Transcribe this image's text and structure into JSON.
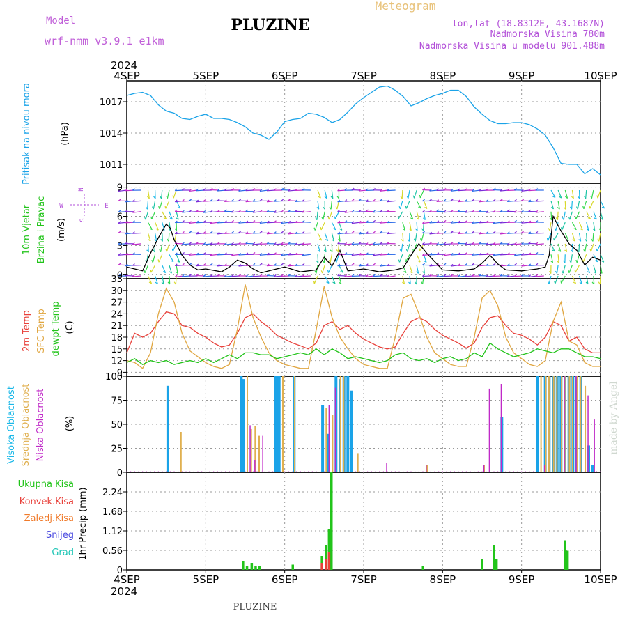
{
  "header": {
    "model_label": "Model",
    "model_name": "wrf-nmm_v3.9.1  e1km",
    "title": "PLUZINE",
    "meteogram": "Meteogram",
    "lonlat": "lon,lat (18.8312E, 43.1687N)",
    "elevation": "Nadmorska Visina 780m",
    "model_elevation": "Nadmorska Visina u modelu 901.488m",
    "footer": "PLUZINE",
    "watermark": "made by Angel",
    "colors": {
      "model": "#c05fd8",
      "title": "#000000",
      "meteogram": "#e8c27a",
      "info": "#b24fd8"
    }
  },
  "time_axis": {
    "year_top": "2024",
    "year_bottom": "2024",
    "dates": [
      "4SEP",
      "5SEP",
      "6SEP",
      "7SEP",
      "8SEP",
      "9SEP",
      "10SEP"
    ],
    "x_range_days": [
      0,
      6
    ]
  },
  "chart_data": [
    {
      "type": "line",
      "panel": "pressure",
      "ylabel_color": "Pritisak na nivou mora",
      "unit": "(hPa)",
      "yticks": [
        "1011",
        "1014",
        "1017"
      ],
      "ylim": [
        1009.2,
        1019.0
      ],
      "series": [
        {
          "color": "#1aa3e8",
          "x": [
            0,
            0.1,
            0.2,
            0.3,
            0.4,
            0.5,
            0.6,
            0.7,
            0.8,
            0.9,
            1.0,
            1.1,
            1.2,
            1.3,
            1.4,
            1.5,
            1.6,
            1.7,
            1.8,
            1.9,
            2.0,
            2.1,
            2.2,
            2.3,
            2.4,
            2.5,
            2.6,
            2.7,
            2.8,
            2.9,
            3.0,
            3.1,
            3.2,
            3.3,
            3.4,
            3.5,
            3.6,
            3.7,
            3.8,
            3.9,
            4.0,
            4.1,
            4.2,
            4.3,
            4.4,
            4.5,
            4.6,
            4.7,
            4.8,
            4.9,
            5.0,
            5.1,
            5.2,
            5.3,
            5.4,
            5.5,
            5.6,
            5.7,
            5.8,
            5.9,
            6.0
          ],
          "values": [
            1017.6,
            1017.8,
            1017.9,
            1017.6,
            1016.7,
            1016.1,
            1015.9,
            1015.4,
            1015.3,
            1015.6,
            1015.8,
            1015.4,
            1015.4,
            1015.3,
            1015.0,
            1014.6,
            1014.0,
            1013.8,
            1013.4,
            1014.1,
            1015.1,
            1015.3,
            1015.4,
            1015.9,
            1015.8,
            1015.5,
            1015.0,
            1015.3,
            1016.0,
            1016.8,
            1017.4,
            1017.9,
            1018.4,
            1018.5,
            1018.1,
            1017.5,
            1016.6,
            1016.9,
            1017.3,
            1017.6,
            1017.8,
            1018.1,
            1018.1,
            1017.5,
            1016.5,
            1015.8,
            1015.2,
            1014.9,
            1014.9,
            1015.0,
            1015.0,
            1014.8,
            1014.4,
            1013.8,
            1012.6,
            1011.1,
            1011.0,
            1011.0,
            1010.1,
            1010.6,
            1010.0
          ]
        }
      ]
    },
    {
      "type": "line",
      "panel": "wind",
      "ylabel_line1": "10m Vjetar",
      "ylabel_line2": "Brzina i Pravac",
      "unit": "(m/s)",
      "compass": {
        "n": "N",
        "s": "S",
        "e": "E",
        "w": "W"
      },
      "yticks": [
        "0",
        "3",
        "6",
        "9"
      ],
      "ylim": [
        -0.4,
        9.4
      ],
      "series": [
        {
          "name_key": "speed",
          "color": "#000000",
          "x": [
            0,
            0.2,
            0.3,
            0.4,
            0.5,
            0.55,
            0.6,
            0.7,
            0.8,
            0.9,
            1.0,
            1.2,
            1.3,
            1.4,
            1.5,
            1.6,
            1.7,
            1.8,
            2.0,
            2.2,
            2.4,
            2.5,
            2.6,
            2.7,
            2.8,
            3.0,
            3.2,
            3.4,
            3.5,
            3.6,
            3.7,
            3.8,
            4.0,
            4.2,
            4.4,
            4.5,
            4.6,
            4.7,
            4.8,
            5.0,
            5.2,
            5.3,
            5.35,
            5.4,
            5.5,
            5.6,
            5.7,
            5.8,
            5.9,
            6.0
          ],
          "values": [
            0.8,
            0.4,
            2.2,
            3.8,
            5.2,
            4.8,
            3.6,
            2.0,
            1.0,
            0.5,
            0.6,
            0.3,
            0.8,
            1.5,
            1.2,
            0.6,
            0.2,
            0.4,
            0.8,
            0.3,
            0.5,
            1.8,
            0.9,
            2.5,
            0.4,
            0.6,
            0.3,
            0.5,
            0.7,
            2.0,
            3.2,
            2.2,
            0.5,
            0.4,
            0.6,
            1.2,
            2.0,
            1.1,
            0.5,
            0.4,
            0.6,
            0.8,
            2.0,
            6.0,
            4.5,
            3.2,
            2.5,
            1.0,
            1.8,
            1.5
          ]
        }
      ]
    },
    {
      "type": "line",
      "panel": "temperature",
      "ylabel_t2": "2m Temp",
      "ylabel_sfc": "SFC Temp",
      "ylabel_dew": "dewpt Temp",
      "unit": "(C)",
      "yticks": [
        "9",
        "12",
        "15",
        "18",
        "21",
        "24",
        "27",
        "30",
        "33"
      ],
      "ylim": [
        8,
        33
      ],
      "series": [
        {
          "name_key": "t2",
          "color": "#e8403a",
          "x": [
            0,
            0.1,
            0.2,
            0.3,
            0.4,
            0.5,
            0.6,
            0.7,
            0.8,
            0.9,
            1.0,
            1.1,
            1.2,
            1.3,
            1.4,
            1.5,
            1.6,
            1.7,
            1.8,
            1.9,
            2.0,
            2.1,
            2.2,
            2.3,
            2.4,
            2.5,
            2.6,
            2.7,
            2.8,
            2.9,
            3.0,
            3.1,
            3.2,
            3.3,
            3.4,
            3.5,
            3.6,
            3.7,
            3.8,
            3.9,
            4.0,
            4.1,
            4.2,
            4.3,
            4.4,
            4.5,
            4.6,
            4.7,
            4.8,
            4.9,
            5.0,
            5.1,
            5.2,
            5.3,
            5.4,
            5.5,
            5.6,
            5.7,
            5.8,
            5.9,
            6.0
          ],
          "values": [
            14,
            19,
            18,
            19,
            22,
            24.5,
            24,
            21,
            20.5,
            19,
            18,
            16.5,
            15.5,
            16,
            19,
            23,
            24,
            22,
            20.5,
            18.5,
            17.5,
            16.5,
            15.8,
            15,
            16.5,
            21,
            22,
            20,
            21,
            19,
            17.5,
            16.5,
            15.5,
            15,
            15.5,
            19,
            22,
            23,
            22,
            20,
            18.5,
            17.5,
            16.5,
            15.2,
            16.5,
            20.5,
            23,
            23.5,
            21,
            19,
            18.5,
            17.5,
            16,
            18,
            22,
            21,
            17,
            18,
            15,
            14,
            14
          ]
        },
        {
          "name_key": "sfc",
          "color": "#e0a640",
          "x": [
            0,
            0.1,
            0.2,
            0.3,
            0.4,
            0.5,
            0.6,
            0.7,
            0.8,
            0.9,
            1.0,
            1.1,
            1.2,
            1.3,
            1.4,
            1.5,
            1.6,
            1.7,
            1.8,
            1.9,
            2.0,
            2.1,
            2.2,
            2.3,
            2.4,
            2.5,
            2.6,
            2.7,
            2.8,
            2.9,
            3.0,
            3.1,
            3.2,
            3.3,
            3.4,
            3.5,
            3.6,
            3.7,
            3.8,
            3.9,
            4.0,
            4.1,
            4.2,
            4.3,
            4.4,
            4.5,
            4.6,
            4.7,
            4.8,
            4.9,
            5.0,
            5.1,
            5.2,
            5.3,
            5.4,
            5.5,
            5.6,
            5.7,
            5.8,
            5.9,
            6.0
          ],
          "values": [
            12,
            11.5,
            10,
            14,
            24,
            30.5,
            27,
            19,
            14.5,
            13,
            11.5,
            10.5,
            10,
            11,
            20,
            31.5,
            23,
            18,
            14,
            12,
            11,
            10.5,
            10,
            10,
            20,
            31,
            23,
            18,
            15,
            12.5,
            11,
            10.5,
            10,
            10,
            18,
            28,
            29,
            24,
            18,
            14,
            12.5,
            11,
            10.5,
            10.5,
            18,
            28,
            30,
            26,
            18,
            14,
            12.5,
            11,
            10.5,
            12,
            22,
            27,
            17,
            16,
            11.5,
            10.5,
            10.5
          ]
        },
        {
          "name_key": "dew",
          "color": "#22c41a",
          "x": [
            0,
            0.1,
            0.2,
            0.3,
            0.4,
            0.5,
            0.6,
            0.7,
            0.8,
            0.9,
            1.0,
            1.1,
            1.2,
            1.3,
            1.4,
            1.5,
            1.6,
            1.7,
            1.8,
            1.9,
            2.0,
            2.1,
            2.2,
            2.3,
            2.4,
            2.5,
            2.6,
            2.7,
            2.8,
            2.9,
            3.0,
            3.1,
            3.2,
            3.3,
            3.4,
            3.5,
            3.6,
            3.7,
            3.8,
            3.9,
            4.0,
            4.1,
            4.2,
            4.3,
            4.4,
            4.5,
            4.6,
            4.7,
            4.8,
            4.9,
            5.0,
            5.1,
            5.2,
            5.3,
            5.4,
            5.5,
            5.6,
            5.7,
            5.8,
            5.9,
            6.0
          ],
          "values": [
            11.5,
            12.5,
            11,
            12,
            11.5,
            12,
            11,
            11.5,
            12,
            11.5,
            12.5,
            11.5,
            12.5,
            13.5,
            12.5,
            14,
            14,
            13.5,
            13.5,
            12.5,
            13,
            13.5,
            14,
            13.5,
            15,
            13.5,
            15,
            14,
            12.5,
            13,
            12.5,
            12,
            11.5,
            12,
            13.5,
            14,
            12.5,
            12,
            12.5,
            11.5,
            12.5,
            13,
            12,
            12.5,
            14,
            13,
            16.5,
            15,
            14,
            13,
            13.5,
            14,
            15,
            14.5,
            14,
            15,
            15,
            14,
            13,
            13,
            12.5
          ]
        }
      ]
    },
    {
      "type": "bar",
      "panel": "cloud",
      "ylabel_high": "Visoka Oblacnost",
      "ylabel_mid": "Srednja Oblacnost",
      "ylabel_low": "Niska Oblacnost",
      "unit": "(%)",
      "yticks": [
        "0",
        "25",
        "50",
        "75",
        "100"
      ],
      "ylim": [
        0,
        100
      ],
      "series": [
        {
          "name_key": "high",
          "color": "#1aa3e8",
          "x": [
            0.52,
            1.45,
            1.48,
            1.88,
            1.9,
            1.93,
            2.12,
            2.48,
            2.55,
            2.65,
            2.7,
            2.75,
            2.8,
            2.85,
            4.75,
            5.2,
            5.3,
            5.35,
            5.4,
            5.45,
            5.5,
            5.55,
            5.6,
            5.65,
            5.7,
            5.75,
            5.85,
            5.9
          ],
          "values": [
            90,
            100,
            97,
            100,
            100,
            100,
            100,
            70,
            40,
            100,
            97,
            100,
            100,
            85,
            58,
            100,
            100,
            100,
            100,
            100,
            100,
            100,
            100,
            100,
            100,
            100,
            28,
            8
          ]
        },
        {
          "name_key": "mid",
          "color": "#e0b050",
          "x": [
            0.66,
            1.5,
            1.55,
            1.6,
            1.65,
            1.95,
            2.1,
            2.5,
            2.58,
            2.68,
            2.72,
            2.9,
            3.78,
            4.5,
            5.22,
            5.28,
            5.32,
            5.38,
            5.42,
            5.48,
            5.52,
            5.58,
            5.62,
            5.68,
            5.72,
            5.78
          ],
          "values": [
            42,
            100,
            45,
            48,
            38,
            100,
            100,
            67,
            60,
            100,
            100,
            20,
            8,
            8,
            100,
            100,
            100,
            100,
            100,
            100,
            100,
            100,
            100,
            100,
            100,
            90
          ]
        },
        {
          "name_key": "low",
          "color": "#c02ac8",
          "x": [
            1.52,
            1.58,
            1.68,
            2.52,
            2.6,
            3.25,
            3.75,
            4.48,
            4.55,
            4.7,
            5.25,
            5.5,
            5.65,
            5.8,
            5.88
          ],
          "values": [
            49,
            13,
            38,
            70,
            88,
            10,
            8,
            8,
            87,
            92,
            8,
            100,
            100,
            80,
            55
          ]
        }
      ]
    },
    {
      "type": "bar",
      "panel": "precip",
      "labels": {
        "total": "Ukupna Kisa",
        "conv": "Konvek.Kisa",
        "frozen": "Zaledj.Kisa",
        "snow": "Snijeg",
        "graupel": "Grad"
      },
      "label_colors": {
        "total": "#22c41a",
        "conv": "#e8403a",
        "frozen": "#f07a2a",
        "snow": "#4a4ae0",
        "graupel": "#1ac4b4"
      },
      "ylabel": "1hr Precip (mm)",
      "yticks": [
        "0",
        "0.56",
        "1.12",
        "1.68",
        "2.24"
      ],
      "ylim": [
        0,
        2.8
      ],
      "series": [
        {
          "name_key": "total",
          "color": "#22c41a",
          "x": [
            1.47,
            1.52,
            1.58,
            1.63,
            1.68,
            2.1,
            2.47,
            2.52,
            2.56,
            2.59,
            3.75,
            4.5,
            4.65,
            4.68,
            5.55,
            5.58
          ],
          "values": [
            0.26,
            0.12,
            0.2,
            0.12,
            0.12,
            0.15,
            0.4,
            0.72,
            1.18,
            2.8,
            0.12,
            0.32,
            0.72,
            0.3,
            0.85,
            0.55
          ]
        },
        {
          "name_key": "conv",
          "color": "#e8403a",
          "x": [
            2.47,
            2.52,
            2.56
          ],
          "values": [
            0.2,
            0.3,
            0.5
          ]
        }
      ]
    }
  ]
}
